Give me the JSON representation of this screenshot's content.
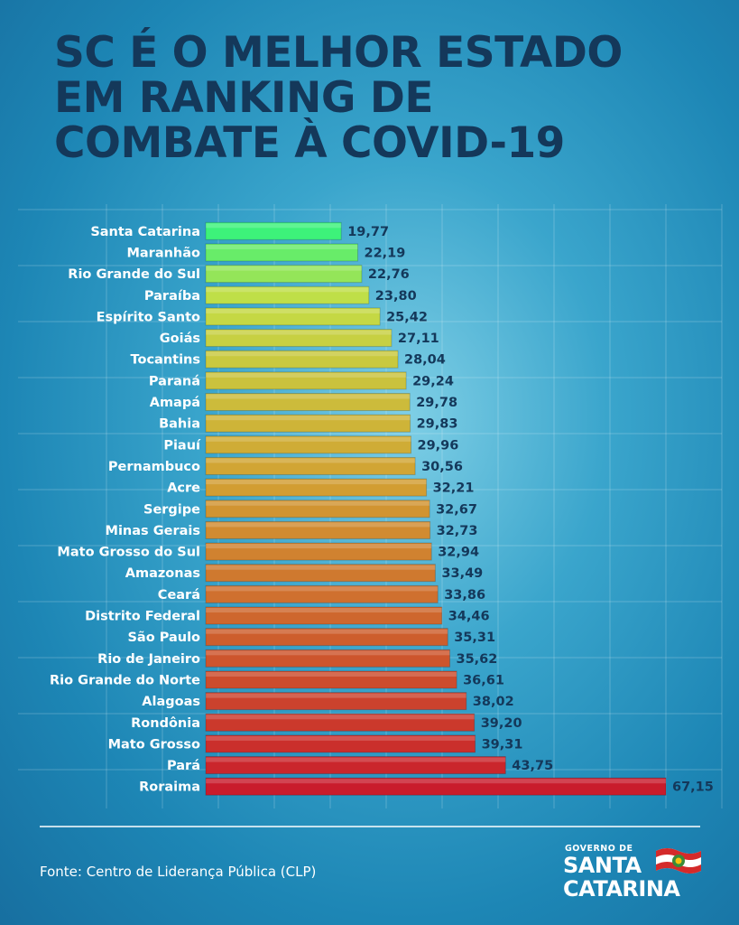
{
  "title_lines": [
    "SC É O MELHOR ESTADO",
    "EM RANKING DE",
    "COMBATE À COVID-19"
  ],
  "source": "Fonte: Centro de Liderança Pública (CLP)",
  "logo": {
    "line1": "GOVERNO DE",
    "line2": "SANTA",
    "line3": "CATARINA"
  },
  "chart_data": {
    "type": "bar",
    "orientation": "horizontal",
    "title": "SC É O MELHOR ESTADO EM RANKING DE COMBATE À COVID-19",
    "categories": [
      "Santa Catarina",
      "Maranhão",
      "Rio Grande do Sul",
      "Paraíba",
      "Espírito Santo",
      "Goiás",
      "Tocantins",
      "Paraná",
      "Amapá",
      "Bahia",
      "Piauí",
      "Pernambuco",
      "Acre",
      "Sergipe",
      "Minas Gerais",
      "Mato Grosso do Sul",
      "Amazonas",
      "Ceará",
      "Distrito Federal",
      "São Paulo",
      "Rio de Janeiro",
      "Rio Grande do Norte",
      "Alagoas",
      "Rondônia",
      "Mato Grosso",
      "Pará",
      "Roraima"
    ],
    "values": [
      19.77,
      22.19,
      22.76,
      23.8,
      25.42,
      27.11,
      28.04,
      29.24,
      29.78,
      29.83,
      29.96,
      30.56,
      32.21,
      32.67,
      32.73,
      32.94,
      33.49,
      33.86,
      34.46,
      35.31,
      35.62,
      36.61,
      38.02,
      39.2,
      39.31,
      43.75,
      67.15
    ],
    "value_labels": [
      "19,77",
      "22,19",
      "22,76",
      "23,80",
      "25,42",
      "27,11",
      "28,04",
      "29,24",
      "29,78",
      "29,83",
      "29,96",
      "30,56",
      "32,21",
      "32,67",
      "32,73",
      "32,94",
      "33,49",
      "33,86",
      "34,46",
      "35,31",
      "35,62",
      "36,61",
      "38,02",
      "39,20",
      "39,31",
      "43,75",
      "67,15"
    ],
    "xlim": [
      0,
      67.15
    ],
    "grid": true,
    "colors": {
      "best": "#3df27a",
      "worst": "#c91c2c"
    }
  }
}
